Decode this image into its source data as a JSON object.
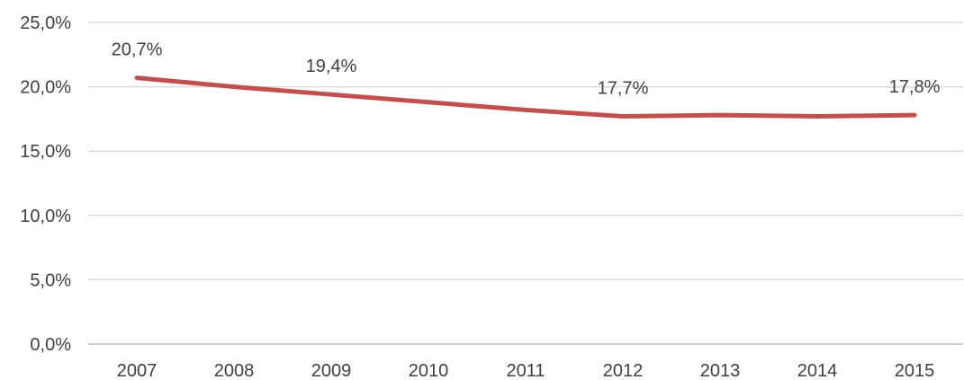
{
  "chart_data": {
    "type": "line",
    "categories": [
      "2007",
      "2008",
      "2009",
      "2010",
      "2011",
      "2012",
      "2013",
      "2014",
      "2015"
    ],
    "series": [
      {
        "values": [
          20.7,
          20.0,
          19.4,
          18.8,
          18.2,
          17.7,
          17.8,
          17.7,
          17.8
        ]
      }
    ],
    "data_labels": [
      {
        "index": 0,
        "text": "20,7%"
      },
      {
        "index": 2,
        "text": "19,4%"
      },
      {
        "index": 5,
        "text": "17,7%"
      },
      {
        "index": 8,
        "text": "17,8%"
      }
    ],
    "y_ticks": [
      "0,0%",
      "5,0%",
      "10,0%",
      "15,0%",
      "20,0%",
      "25,0%"
    ],
    "ylim": [
      0,
      25
    ],
    "y_tick_step": 5,
    "title": "",
    "xlabel": "",
    "ylabel": "",
    "grid": "horizontal",
    "legend": "none",
    "colors": {
      "line": "#c0504d",
      "grid": "#d9d9d9",
      "axis": "#bfbfbf",
      "text": "#404040"
    }
  }
}
